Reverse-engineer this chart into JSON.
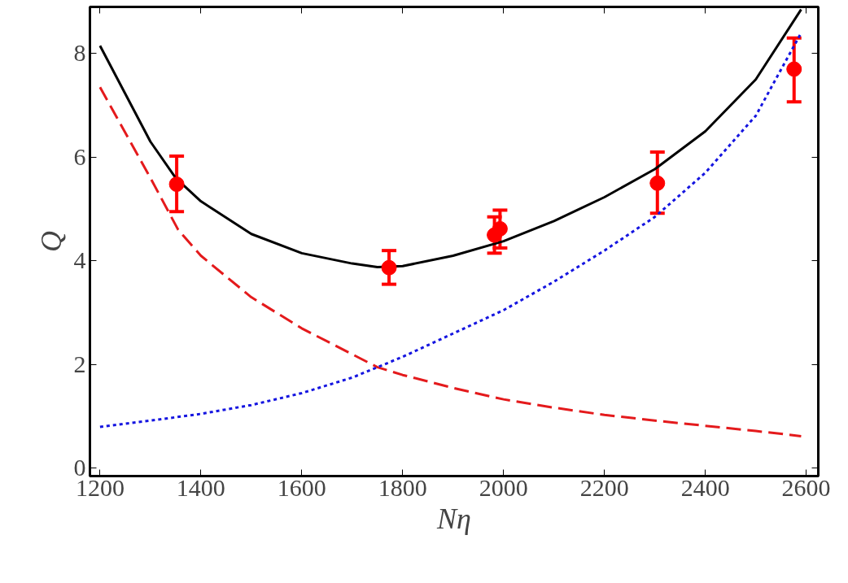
{
  "chart_data": {
    "type": "scatter",
    "xlabel": "Nη",
    "ylabel": "Q",
    "xlim": [
      1180,
      2624
    ],
    "ylim": [
      -0.15,
      8.9
    ],
    "xticks": [
      1200,
      1400,
      1600,
      1800,
      2000,
      2200,
      2400,
      2600
    ],
    "yticks": [
      0,
      2,
      4,
      6,
      8
    ],
    "grid": false,
    "series": [
      {
        "type": "line",
        "color": "#e41a1c",
        "line_style": "dashed",
        "x": [
          1200,
          1300,
          1355,
          1400,
          1500,
          1600,
          1700,
          1750,
          1800,
          1900,
          2000,
          2100,
          2200,
          2300,
          2400,
          2500,
          2590
        ],
        "values": [
          7.35,
          5.6,
          4.6,
          4.1,
          3.3,
          2.7,
          2.2,
          1.95,
          1.8,
          1.55,
          1.33,
          1.17,
          1.03,
          0.92,
          0.82,
          0.72,
          0.62
        ]
      },
      {
        "type": "line",
        "color": "#1515e0",
        "line_style": "dotted",
        "x": [
          1200,
          1300,
          1400,
          1500,
          1600,
          1700,
          1750,
          1800,
          1900,
          2000,
          2100,
          2200,
          2300,
          2400,
          2500,
          2590
        ],
        "values": [
          0.8,
          0.92,
          1.05,
          1.22,
          1.45,
          1.75,
          1.95,
          2.15,
          2.6,
          3.05,
          3.6,
          4.2,
          4.85,
          5.7,
          6.8,
          8.4
        ]
      },
      {
        "type": "line",
        "color": "#000000",
        "line_style": "solid",
        "x": [
          1200,
          1300,
          1350,
          1400,
          1500,
          1600,
          1700,
          1750,
          1800,
          1900,
          2000,
          2100,
          2200,
          2300,
          2400,
          2500,
          2590
        ],
        "values": [
          8.15,
          6.3,
          5.6,
          5.15,
          4.52,
          4.15,
          3.95,
          3.88,
          3.9,
          4.1,
          4.38,
          4.77,
          5.23,
          5.77,
          6.5,
          7.5,
          8.85
        ]
      },
      {
        "color": "#ff0000",
        "marker": "circle",
        "x": [
          1352,
          1773,
          1982,
          1993,
          2305,
          2576
        ],
        "values": [
          5.48,
          3.87,
          4.5,
          4.62,
          5.5,
          7.7
        ],
        "errors": [
          [
            4.95,
            6.02
          ],
          [
            3.55,
            4.2
          ],
          [
            4.15,
            4.85
          ],
          [
            4.25,
            4.98
          ],
          [
            4.92,
            6.1
          ],
          [
            7.07,
            8.3
          ]
        ]
      }
    ]
  }
}
